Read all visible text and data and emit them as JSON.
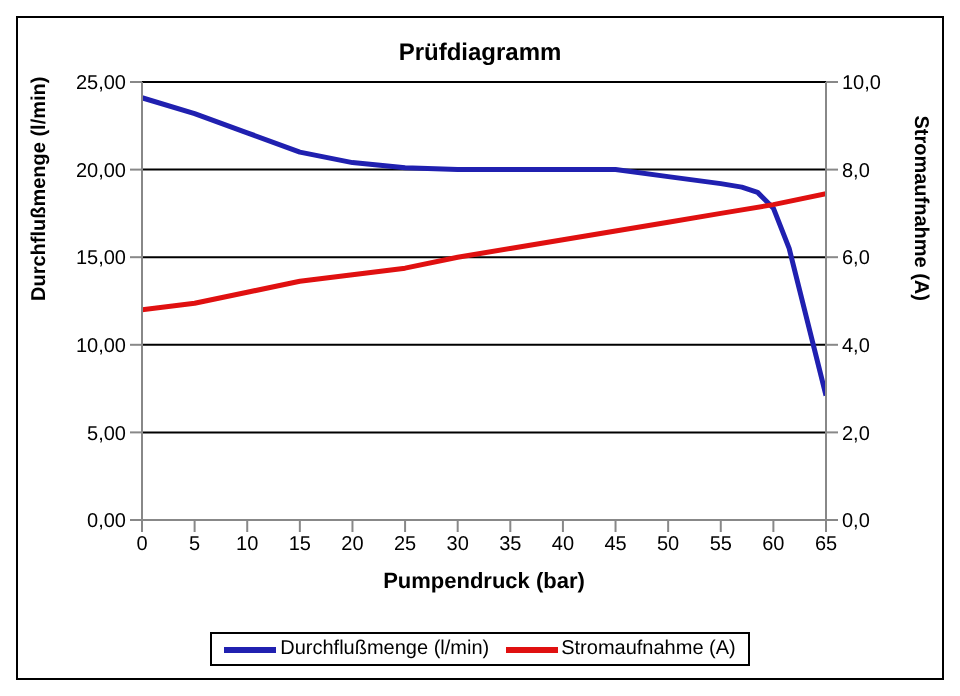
{
  "chart_data": {
    "type": "line",
    "title": "Prüfdiagramm",
    "xlabel": "Pumpendruck (bar)",
    "ylabel": "Durchflußmenge (l/min)",
    "y2label": "Stromaufnahme (A)",
    "series": [
      {
        "name": "Durchflußmenge (l/min)",
        "color": "#2020b0",
        "x": [
          0,
          5,
          10,
          15,
          20,
          25,
          30,
          35,
          40,
          45,
          50,
          55,
          57,
          58.5,
          60,
          61.5,
          65
        ],
        "values": [
          24.1,
          23.2,
          22.1,
          21,
          20.4,
          20.1,
          20,
          20,
          20,
          20,
          19.6,
          19.2,
          19,
          18.7,
          17.8,
          15.5,
          7.1
        ]
      },
      {
        "name": "Stromaufnahme (A)",
        "color": "#e01010",
        "axis": "y2",
        "x": [
          0,
          5,
          10,
          15,
          20,
          25,
          30,
          35,
          40,
          45,
          50,
          55,
          60,
          65
        ],
        "values": [
          4.8,
          4.95,
          5.2,
          5.45,
          5.6,
          5.75,
          6,
          6.2,
          6.4,
          6.6,
          6.8,
          7,
          7.2,
          7.45
        ]
      }
    ],
    "xlim": [
      0,
      65
    ],
    "xticks": [
      0,
      5,
      10,
      15,
      20,
      25,
      30,
      35,
      40,
      45,
      50,
      55,
      60,
      65
    ],
    "ylim": [
      0,
      25
    ],
    "yticks": [
      {
        "value": 0,
        "label": "0,00"
      },
      {
        "value": 5,
        "label": "5,00"
      },
      {
        "value": 10,
        "label": "10,00"
      },
      {
        "value": 15,
        "label": "15,00"
      },
      {
        "value": 20,
        "label": "20,00"
      },
      {
        "value": 25,
        "label": "25,00"
      }
    ],
    "y2lim": [
      0,
      10
    ],
    "y2ticks": [
      {
        "value": 0,
        "label": "0,0"
      },
      {
        "value": 2,
        "label": "2,0"
      },
      {
        "value": 4,
        "label": "4,0"
      },
      {
        "value": 6,
        "label": "6,0"
      },
      {
        "value": 8,
        "label": "8,0"
      },
      {
        "value": 10,
        "label": "10,0"
      }
    ],
    "grid": "y",
    "legend": "bottom",
    "marker": "none",
    "line_style": "solid"
  }
}
